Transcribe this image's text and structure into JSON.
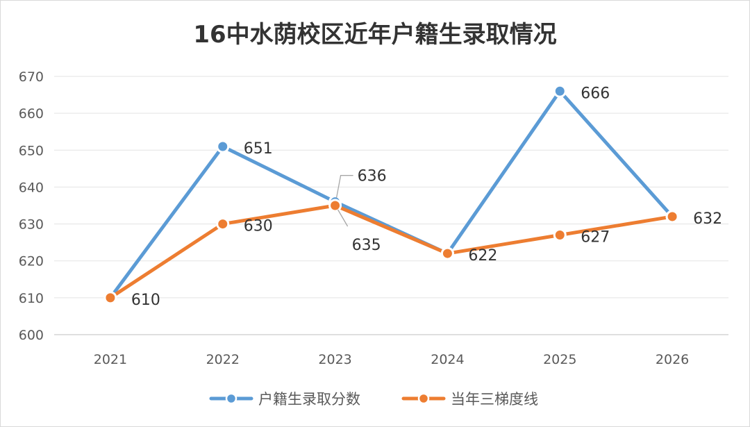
{
  "chart_data": {
    "type": "line",
    "title": "16中水荫校区近年户籍生录取情况",
    "x": [
      "2021",
      "2022",
      "2023",
      "2024",
      "2025",
      "2026"
    ],
    "ylim": [
      600,
      670
    ],
    "yticks": [
      600,
      610,
      620,
      630,
      640,
      650,
      660,
      670
    ],
    "grid": true,
    "legend_position": "bottom",
    "series": [
      {
        "name": "户籍生录取分数",
        "values": [
          610,
          651,
          636,
          622,
          666,
          632
        ],
        "color": "#5b9bd5"
      },
      {
        "name": "当年三梯度线",
        "values": [
          610,
          630,
          635,
          622,
          627,
          632
        ],
        "color": "#ed7d31"
      }
    ],
    "data_labels": [
      {
        "series": 0,
        "index": 1,
        "text": "651"
      },
      {
        "series": 0,
        "index": 2,
        "text": "636"
      },
      {
        "series": 0,
        "index": 4,
        "text": "666"
      },
      {
        "series": 1,
        "index": 0,
        "text": "610"
      },
      {
        "series": 1,
        "index": 1,
        "text": "630"
      },
      {
        "series": 1,
        "index": 2,
        "text": "635"
      },
      {
        "series": 1,
        "index": 3,
        "text": "622"
      },
      {
        "series": 1,
        "index": 4,
        "text": "627"
      },
      {
        "series": 1,
        "index": 5,
        "text": "632"
      }
    ]
  }
}
